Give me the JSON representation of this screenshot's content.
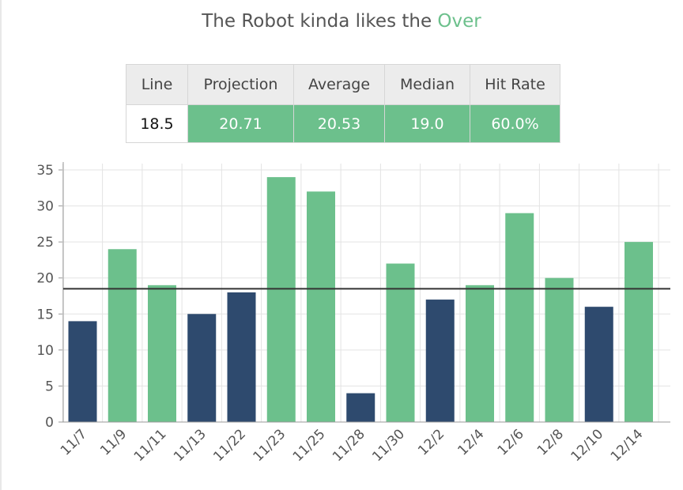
{
  "header": {
    "title_prefix": "The Robot kinda likes the ",
    "title_pick": "Over"
  },
  "table": {
    "headers": [
      "Line",
      "Projection",
      "Average",
      "Median",
      "Hit Rate"
    ],
    "values": [
      "18.5",
      "20.71",
      "20.53",
      "19.0",
      "60.0%"
    ]
  },
  "colors": {
    "over": "#6cc08c",
    "under": "#2e4a6e",
    "line": "#333333",
    "header_bg": "#ececec"
  },
  "chart_data": {
    "type": "bar",
    "categories": [
      "11/7",
      "11/9",
      "11/11",
      "11/13",
      "11/22",
      "11/23",
      "11/25",
      "11/28",
      "11/30",
      "12/2",
      "12/4",
      "12/6",
      "12/8",
      "12/10",
      "12/14"
    ],
    "values": [
      14,
      24,
      19,
      15,
      18,
      34,
      32,
      4,
      22,
      17,
      19,
      29,
      20,
      16,
      25
    ],
    "reference_line": 18.5,
    "ylim": [
      0,
      35
    ],
    "yticks": [
      0,
      5,
      10,
      15,
      20,
      25,
      30,
      35
    ],
    "grid": true,
    "xlabel": "",
    "ylabel": ""
  }
}
